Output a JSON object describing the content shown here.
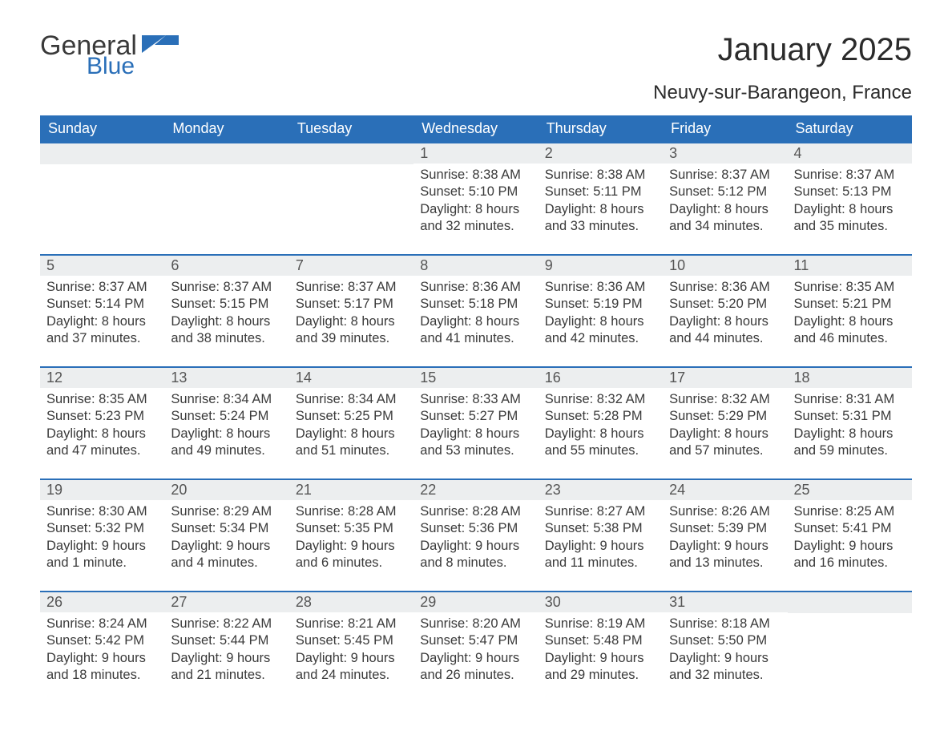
{
  "logo": {
    "word1": "General",
    "word2": "Blue",
    "text_color": "#3a3a3a",
    "blue_color": "#2a6fb8",
    "shape_color": "#2a6fb8"
  },
  "header": {
    "month_title": "January 2025",
    "location": "Neuvy-sur-Barangeon, France"
  },
  "colors": {
    "header_bg": "#2a6fb8",
    "header_text": "#ffffff",
    "daynum_bg": "#eceeef",
    "daynum_border": "#2a6fb8",
    "body_text": "#3a3a3a",
    "daynum_text": "#555555",
    "page_bg": "#ffffff"
  },
  "typography": {
    "month_title_fontsize": 40,
    "location_fontsize": 24,
    "weekday_fontsize": 18,
    "daynum_fontsize": 18,
    "body_fontsize": 16.5
  },
  "calendar": {
    "type": "table",
    "columns": [
      "Sunday",
      "Monday",
      "Tuesday",
      "Wednesday",
      "Thursday",
      "Friday",
      "Saturday"
    ],
    "weeks": [
      [
        null,
        null,
        null,
        {
          "n": "1",
          "sunrise": "Sunrise: 8:38 AM",
          "sunset": "Sunset: 5:10 PM",
          "day1": "Daylight: 8 hours",
          "day2": "and 32 minutes."
        },
        {
          "n": "2",
          "sunrise": "Sunrise: 8:38 AM",
          "sunset": "Sunset: 5:11 PM",
          "day1": "Daylight: 8 hours",
          "day2": "and 33 minutes."
        },
        {
          "n": "3",
          "sunrise": "Sunrise: 8:37 AM",
          "sunset": "Sunset: 5:12 PM",
          "day1": "Daylight: 8 hours",
          "day2": "and 34 minutes."
        },
        {
          "n": "4",
          "sunrise": "Sunrise: 8:37 AM",
          "sunset": "Sunset: 5:13 PM",
          "day1": "Daylight: 8 hours",
          "day2": "and 35 minutes."
        }
      ],
      [
        {
          "n": "5",
          "sunrise": "Sunrise: 8:37 AM",
          "sunset": "Sunset: 5:14 PM",
          "day1": "Daylight: 8 hours",
          "day2": "and 37 minutes."
        },
        {
          "n": "6",
          "sunrise": "Sunrise: 8:37 AM",
          "sunset": "Sunset: 5:15 PM",
          "day1": "Daylight: 8 hours",
          "day2": "and 38 minutes."
        },
        {
          "n": "7",
          "sunrise": "Sunrise: 8:37 AM",
          "sunset": "Sunset: 5:17 PM",
          "day1": "Daylight: 8 hours",
          "day2": "and 39 minutes."
        },
        {
          "n": "8",
          "sunrise": "Sunrise: 8:36 AM",
          "sunset": "Sunset: 5:18 PM",
          "day1": "Daylight: 8 hours",
          "day2": "and 41 minutes."
        },
        {
          "n": "9",
          "sunrise": "Sunrise: 8:36 AM",
          "sunset": "Sunset: 5:19 PM",
          "day1": "Daylight: 8 hours",
          "day2": "and 42 minutes."
        },
        {
          "n": "10",
          "sunrise": "Sunrise: 8:36 AM",
          "sunset": "Sunset: 5:20 PM",
          "day1": "Daylight: 8 hours",
          "day2": "and 44 minutes."
        },
        {
          "n": "11",
          "sunrise": "Sunrise: 8:35 AM",
          "sunset": "Sunset: 5:21 PM",
          "day1": "Daylight: 8 hours",
          "day2": "and 46 minutes."
        }
      ],
      [
        {
          "n": "12",
          "sunrise": "Sunrise: 8:35 AM",
          "sunset": "Sunset: 5:23 PM",
          "day1": "Daylight: 8 hours",
          "day2": "and 47 minutes."
        },
        {
          "n": "13",
          "sunrise": "Sunrise: 8:34 AM",
          "sunset": "Sunset: 5:24 PM",
          "day1": "Daylight: 8 hours",
          "day2": "and 49 minutes."
        },
        {
          "n": "14",
          "sunrise": "Sunrise: 8:34 AM",
          "sunset": "Sunset: 5:25 PM",
          "day1": "Daylight: 8 hours",
          "day2": "and 51 minutes."
        },
        {
          "n": "15",
          "sunrise": "Sunrise: 8:33 AM",
          "sunset": "Sunset: 5:27 PM",
          "day1": "Daylight: 8 hours",
          "day2": "and 53 minutes."
        },
        {
          "n": "16",
          "sunrise": "Sunrise: 8:32 AM",
          "sunset": "Sunset: 5:28 PM",
          "day1": "Daylight: 8 hours",
          "day2": "and 55 minutes."
        },
        {
          "n": "17",
          "sunrise": "Sunrise: 8:32 AM",
          "sunset": "Sunset: 5:29 PM",
          "day1": "Daylight: 8 hours",
          "day2": "and 57 minutes."
        },
        {
          "n": "18",
          "sunrise": "Sunrise: 8:31 AM",
          "sunset": "Sunset: 5:31 PM",
          "day1": "Daylight: 8 hours",
          "day2": "and 59 minutes."
        }
      ],
      [
        {
          "n": "19",
          "sunrise": "Sunrise: 8:30 AM",
          "sunset": "Sunset: 5:32 PM",
          "day1": "Daylight: 9 hours",
          "day2": "and 1 minute."
        },
        {
          "n": "20",
          "sunrise": "Sunrise: 8:29 AM",
          "sunset": "Sunset: 5:34 PM",
          "day1": "Daylight: 9 hours",
          "day2": "and 4 minutes."
        },
        {
          "n": "21",
          "sunrise": "Sunrise: 8:28 AM",
          "sunset": "Sunset: 5:35 PM",
          "day1": "Daylight: 9 hours",
          "day2": "and 6 minutes."
        },
        {
          "n": "22",
          "sunrise": "Sunrise: 8:28 AM",
          "sunset": "Sunset: 5:36 PM",
          "day1": "Daylight: 9 hours",
          "day2": "and 8 minutes."
        },
        {
          "n": "23",
          "sunrise": "Sunrise: 8:27 AM",
          "sunset": "Sunset: 5:38 PM",
          "day1": "Daylight: 9 hours",
          "day2": "and 11 minutes."
        },
        {
          "n": "24",
          "sunrise": "Sunrise: 8:26 AM",
          "sunset": "Sunset: 5:39 PM",
          "day1": "Daylight: 9 hours",
          "day2": "and 13 minutes."
        },
        {
          "n": "25",
          "sunrise": "Sunrise: 8:25 AM",
          "sunset": "Sunset: 5:41 PM",
          "day1": "Daylight: 9 hours",
          "day2": "and 16 minutes."
        }
      ],
      [
        {
          "n": "26",
          "sunrise": "Sunrise: 8:24 AM",
          "sunset": "Sunset: 5:42 PM",
          "day1": "Daylight: 9 hours",
          "day2": "and 18 minutes."
        },
        {
          "n": "27",
          "sunrise": "Sunrise: 8:22 AM",
          "sunset": "Sunset: 5:44 PM",
          "day1": "Daylight: 9 hours",
          "day2": "and 21 minutes."
        },
        {
          "n": "28",
          "sunrise": "Sunrise: 8:21 AM",
          "sunset": "Sunset: 5:45 PM",
          "day1": "Daylight: 9 hours",
          "day2": "and 24 minutes."
        },
        {
          "n": "29",
          "sunrise": "Sunrise: 8:20 AM",
          "sunset": "Sunset: 5:47 PM",
          "day1": "Daylight: 9 hours",
          "day2": "and 26 minutes."
        },
        {
          "n": "30",
          "sunrise": "Sunrise: 8:19 AM",
          "sunset": "Sunset: 5:48 PM",
          "day1": "Daylight: 9 hours",
          "day2": "and 29 minutes."
        },
        {
          "n": "31",
          "sunrise": "Sunrise: 8:18 AM",
          "sunset": "Sunset: 5:50 PM",
          "day1": "Daylight: 9 hours",
          "day2": "and 32 minutes."
        },
        null
      ]
    ]
  }
}
